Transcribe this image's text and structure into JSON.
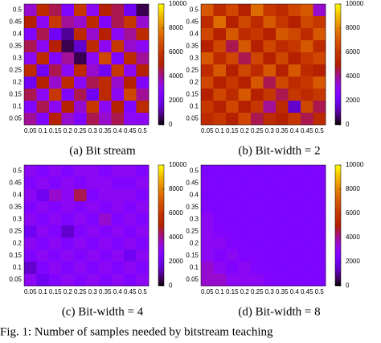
{
  "chart_data": [
    {
      "type": "heatmap",
      "title": "(a) Bit stream",
      "x": [
        0.05,
        0.1,
        0.15,
        0.2,
        0.25,
        0.3,
        0.35,
        0.4,
        0.45,
        0.5
      ],
      "y": [
        0.5,
        0.45,
        0.4,
        0.35,
        0.3,
        0.25,
        0.2,
        0.15,
        0.1,
        0.05
      ],
      "values": [
        [
          3500,
          5500,
          4500,
          2500,
          6000,
          3000,
          5000,
          4500,
          2000,
          500
        ],
        [
          5000,
          3000,
          6000,
          4000,
          3500,
          5500,
          2500,
          4500,
          6000,
          3500
        ],
        [
          2500,
          4500,
          2000,
          1000,
          5500,
          3500,
          5000,
          3000,
          4000,
          5500
        ],
        [
          4500,
          3000,
          5000,
          500,
          1500,
          5500,
          3000,
          6000,
          3500,
          3000
        ],
        [
          3000,
          5500,
          2500,
          4000,
          500,
          3000,
          6500,
          2500,
          5500,
          4000
        ],
        [
          5500,
          2000,
          4500,
          3000,
          5500,
          3500,
          2000,
          6000,
          3000,
          5000
        ],
        [
          2000,
          5000,
          3500,
          5500,
          3000,
          4500,
          5500,
          3500,
          5000,
          2500
        ],
        [
          4500,
          3000,
          6000,
          2500,
          4500,
          2000,
          5500,
          3000,
          6500,
          4000
        ],
        [
          2500,
          4500,
          3000,
          5000,
          3500,
          6000,
          3000,
          5000,
          2500,
          5500
        ],
        [
          4000,
          2500,
          5000,
          3500,
          2500,
          4500,
          3500,
          4500,
          3000,
          3000
        ]
      ],
      "zlim": [
        0,
        10000
      ],
      "zticks": [
        0,
        2000,
        4000,
        6000,
        8000,
        10000
      ]
    },
    {
      "type": "heatmap",
      "title": "(b) Bit-width = 2",
      "x": [
        0.05,
        0.1,
        0.15,
        0.2,
        0.25,
        0.3,
        0.35,
        0.4,
        0.45,
        0.5
      ],
      "y": [
        0.5,
        0.45,
        0.4,
        0.35,
        0.3,
        0.25,
        0.2,
        0.15,
        0.1,
        0.05
      ],
      "values": [
        [
          7000,
          5500,
          6500,
          5000,
          7500,
          6000,
          5500,
          6500,
          7000,
          3500
        ],
        [
          5500,
          7500,
          5000,
          6500,
          5500,
          7000,
          6000,
          5000,
          6500,
          6000
        ],
        [
          6500,
          5000,
          7000,
          5500,
          6000,
          5000,
          7000,
          6500,
          5500,
          7000
        ],
        [
          5000,
          6500,
          4500,
          7000,
          5000,
          6500,
          5500,
          6000,
          7000,
          5500
        ],
        [
          7000,
          5500,
          6500,
          4500,
          6500,
          5000,
          6500,
          5000,
          6000,
          6500
        ],
        [
          5500,
          7000,
          5000,
          6500,
          5500,
          7000,
          5000,
          7000,
          5500,
          5000
        ],
        [
          6500,
          5000,
          6000,
          5000,
          7000,
          4500,
          6500,
          5500,
          6000,
          7000
        ],
        [
          5000,
          6500,
          5500,
          7000,
          5000,
          6000,
          4500,
          6000,
          5500,
          6000
        ],
        [
          6000,
          5000,
          6500,
          5000,
          6000,
          4000,
          5500,
          1500,
          6500,
          4500
        ],
        [
          5500,
          6000,
          5000,
          6500,
          4500,
          5500,
          5000,
          6000,
          4500,
          5500
        ]
      ],
      "zlim": [
        0,
        10000
      ],
      "zticks": [
        0,
        2000,
        4000,
        6000,
        8000,
        10000
      ]
    },
    {
      "type": "heatmap",
      "title": "(c) Bit-width = 4",
      "x": [
        0.05,
        0.1,
        0.15,
        0.2,
        0.25,
        0.3,
        0.35,
        0.4,
        0.45,
        0.5
      ],
      "y": [
        0.5,
        0.45,
        0.4,
        0.35,
        0.3,
        0.25,
        0.2,
        0.15,
        0.1,
        0.05
      ],
      "values": [
        [
          3000,
          2500,
          3000,
          2500,
          3000,
          3000,
          2500,
          3000,
          3000,
          2500
        ],
        [
          2500,
          3000,
          2500,
          3000,
          2500,
          3000,
          3000,
          2500,
          2500,
          3000
        ],
        [
          3000,
          2000,
          3500,
          3000,
          4500,
          2500,
          3000,
          3000,
          3000,
          2500
        ],
        [
          2500,
          3000,
          2500,
          3000,
          2500,
          3000,
          2500,
          3000,
          2500,
          3000
        ],
        [
          3000,
          2500,
          3000,
          2500,
          3000,
          2500,
          3500,
          2500,
          3000,
          2500
        ],
        [
          2000,
          3000,
          2500,
          1500,
          2500,
          3000,
          2500,
          3000,
          2500,
          3000
        ],
        [
          3000,
          2500,
          3000,
          2500,
          3000,
          2500,
          3000,
          2500,
          3000,
          2500
        ],
        [
          2500,
          3000,
          2500,
          3000,
          2500,
          3000,
          2500,
          3000,
          2000,
          3000
        ],
        [
          1500,
          2500,
          3000,
          2500,
          3000,
          2500,
          3000,
          2500,
          3000,
          2500
        ],
        [
          3000,
          2000,
          2500,
          3000,
          2500,
          3000,
          2500,
          3000,
          2500,
          3000
        ]
      ],
      "zlim": [
        0,
        10000
      ],
      "zticks": [
        0,
        2000,
        4000,
        6000,
        8000,
        10000
      ]
    },
    {
      "type": "heatmap",
      "title": "(d) Bit-width = 8",
      "x": [
        0.05,
        0.1,
        0.15,
        0.2,
        0.25,
        0.3,
        0.35,
        0.4,
        0.45,
        0.5
      ],
      "y": [
        0.5,
        0.45,
        0.4,
        0.35,
        0.3,
        0.25,
        0.2,
        0.15,
        0.1,
        0.05
      ],
      "values": [
        [
          2400,
          2500,
          2400,
          2500,
          2400,
          2500,
          2400,
          2500,
          2400,
          2500
        ],
        [
          2500,
          2400,
          2500,
          2400,
          2500,
          2400,
          2500,
          2400,
          2500,
          2400
        ],
        [
          2400,
          2500,
          2400,
          2500,
          2400,
          2500,
          2400,
          2500,
          2400,
          2500
        ],
        [
          2600,
          2400,
          2500,
          2400,
          2500,
          2400,
          2500,
          2400,
          2500,
          2400
        ],
        [
          3000,
          2500,
          2400,
          2500,
          2400,
          2500,
          2400,
          2500,
          2400,
          2500
        ],
        [
          3000,
          2600,
          2500,
          2400,
          2500,
          2400,
          2500,
          2400,
          2500,
          2400
        ],
        [
          3000,
          3000,
          2600,
          2500,
          2400,
          2500,
          2400,
          2500,
          2400,
          2500
        ],
        [
          3000,
          2600,
          3000,
          2500,
          2500,
          2400,
          2500,
          2400,
          2500,
          2400
        ],
        [
          3500,
          3000,
          2600,
          3000,
          2500,
          2500,
          2400,
          2500,
          2400,
          2500
        ],
        [
          3500,
          3500,
          3000,
          3000,
          3000,
          2600,
          2500,
          2400,
          2500,
          2400
        ]
      ],
      "zlim": [
        0,
        10000
      ],
      "zticks": [
        0,
        2000,
        4000,
        6000,
        8000,
        10000
      ]
    }
  ],
  "figure_caption": "Fig. 1: Number of samples needed by bitstream teaching"
}
